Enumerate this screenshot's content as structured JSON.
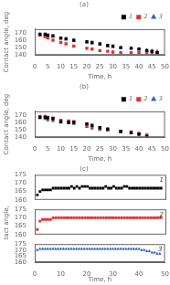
{
  "chart_data": [
    {
      "type": "scatter",
      "title": "(a)",
      "xlabel": "Time, h",
      "ylabel": "Contact angle, deg",
      "xlim": [
        0,
        50
      ],
      "ylim": [
        140,
        175
      ],
      "xticks": [
        0,
        5,
        10,
        15,
        20,
        25,
        30,
        35,
        40,
        45,
        50
      ],
      "yticks": [
        140,
        150,
        160,
        170
      ],
      "grid": false,
      "legend": "upper right",
      "series": [
        {
          "name": "1",
          "color": "#000000",
          "marker": "square",
          "x": [
            2,
            4,
            5,
            7,
            10,
            12,
            15,
            20,
            22,
            25,
            28,
            30,
            33,
            37,
            40,
            43,
            45,
            47
          ],
          "values": [
            168,
            168,
            167,
            166,
            163,
            162,
            160,
            158,
            157,
            155,
            153,
            152,
            150,
            149,
            148,
            146,
            145,
            143
          ]
        },
        {
          "name": "2",
          "color": "#e03030",
          "marker": "square",
          "x": [
            2,
            4,
            5,
            7,
            10,
            12,
            15,
            20,
            22,
            25,
            28,
            30,
            33,
            37,
            40,
            43,
            45,
            47
          ],
          "values": [
            167,
            165,
            163,
            160,
            157,
            155,
            152,
            149,
            148,
            146,
            145,
            144,
            143,
            143,
            143,
            143,
            143,
            143
          ]
        },
        {
          "name": "3",
          "color": "#3060c0",
          "marker": "triangle",
          "x": [
            2,
            4,
            5,
            7,
            10,
            12,
            15,
            20,
            22,
            25,
            28,
            30,
            33,
            37,
            40,
            43,
            45,
            47
          ],
          "values": [
            168,
            167,
            166,
            165,
            162,
            161,
            159,
            157,
            156,
            154,
            152,
            151,
            150,
            149,
            148,
            147,
            146,
            145
          ]
        }
      ]
    },
    {
      "type": "scatter",
      "title": "(b)",
      "xlabel": "Time, h",
      "ylabel": "Contact angle, deg",
      "xlim": [
        0,
        50
      ],
      "ylim": [
        140,
        175
      ],
      "xticks": [
        0,
        5,
        10,
        15,
        20,
        25,
        30,
        35,
        40,
        45,
        50
      ],
      "yticks": [
        140,
        150,
        160,
        170
      ],
      "grid": false,
      "legend": "upper right",
      "series": [
        {
          "name": "1",
          "color": "#000000",
          "marker": "square",
          "x": [
            2,
            4,
            5,
            7,
            10,
            13,
            15,
            20,
            22,
            25,
            28,
            33,
            37,
            40,
            43
          ],
          "values": [
            167,
            167,
            166,
            165,
            161,
            160,
            160,
            158,
            156,
            153,
            151,
            148,
            146,
            144,
            141
          ]
        },
        {
          "name": "2",
          "color": "#e03030",
          "marker": "square",
          "x": [
            2,
            4,
            5,
            7,
            10,
            13,
            15,
            20,
            22,
            25,
            28,
            33,
            37,
            40,
            43
          ],
          "values": [
            168,
            168,
            167,
            166,
            163,
            162,
            161,
            156,
            154,
            152,
            150,
            148,
            147,
            145,
            143
          ]
        },
        {
          "name": "3",
          "color": "#3060c0",
          "marker": "triangle",
          "x": [
            2,
            4,
            5,
            7,
            10,
            13,
            15,
            20,
            22,
            25,
            28,
            33,
            37,
            40,
            43
          ],
          "values": [
            166,
            165,
            163,
            162,
            160,
            159,
            158,
            154,
            152,
            150,
            149,
            147,
            146,
            145,
            143
          ]
        }
      ]
    },
    {
      "type": "scatter",
      "title": "(c)",
      "xlim": [
        0,
        50
      ],
      "ylim": [
        160,
        175
      ],
      "yticks": [
        160,
        165,
        170,
        175
      ],
      "grid": false,
      "tick_labels": "y",
      "annotations": [
        "1"
      ],
      "series": [
        {
          "color": "#000000",
          "marker": "square",
          "x": [
            1,
            2,
            3,
            4,
            5,
            6,
            7,
            8,
            9,
            10,
            11,
            12,
            13,
            14,
            15,
            16,
            17,
            18,
            19,
            20,
            21,
            22,
            23,
            24,
            25,
            26,
            27,
            28,
            29,
            30,
            31,
            32,
            33,
            34,
            35,
            36,
            37,
            38,
            39,
            40,
            41,
            42,
            43,
            44,
            45,
            46,
            47,
            48
          ],
          "values": [
            163,
            165,
            166,
            166,
            166,
            166,
            167,
            167,
            167,
            167,
            167,
            167,
            167,
            168,
            167,
            168,
            167,
            168,
            168,
            168,
            167,
            167,
            167,
            167,
            167,
            167,
            168,
            167,
            167,
            168,
            167,
            167,
            167,
            168,
            168,
            167,
            167,
            167,
            167,
            167,
            167,
            167,
            167,
            167,
            167,
            167,
            167,
            167
          ]
        }
      ]
    },
    {
      "type": "scatter",
      "ylabel": "Contact angle, deg",
      "xlim": [
        0,
        50
      ],
      "ylim": [
        160,
        175
      ],
      "yticks": [
        160,
        165,
        170,
        175
      ],
      "grid": false,
      "tick_labels": "y",
      "annotations": [
        "2"
      ],
      "series": [
        {
          "color": "#e03030",
          "marker": "square",
          "x": [
            1,
            2,
            3,
            4,
            5,
            6,
            7,
            8,
            9,
            10,
            11,
            12,
            13,
            14,
            15,
            16,
            17,
            18,
            19,
            20,
            21,
            22,
            23,
            24,
            25,
            26,
            27,
            28,
            29,
            30,
            31,
            32,
            33,
            34,
            35,
            36,
            37,
            38,
            39,
            40,
            41,
            42,
            43,
            44,
            45,
            46,
            47,
            48
          ],
          "values": [
            163,
            168,
            169,
            169,
            169,
            169,
            170,
            170,
            170,
            170,
            170,
            170,
            170,
            170,
            170,
            170,
            170,
            170,
            170,
            170,
            170,
            170,
            170,
            170,
            170,
            170,
            170,
            170,
            170,
            170,
            170,
            170,
            170,
            170,
            170,
            170,
            170,
            170,
            170,
            170,
            170,
            170,
            170,
            170,
            170,
            170,
            170,
            170
          ]
        }
      ]
    },
    {
      "type": "scatter",
      "xlabel": "Time, h",
      "xlim": [
        0,
        50
      ],
      "xticks": [
        0,
        10,
        20,
        30,
        40,
        50
      ],
      "ylim": [
        160,
        175
      ],
      "yticks": [
        160,
        165,
        170,
        175
      ],
      "grid": false,
      "annotations": [
        "3"
      ],
      "series": [
        {
          "color": "#3060c0",
          "marker": "triangle",
          "x": [
            1,
            2,
            3,
            4,
            5,
            6,
            7,
            8,
            9,
            10,
            11,
            12,
            13,
            14,
            15,
            16,
            17,
            18,
            19,
            20,
            21,
            22,
            23,
            24,
            25,
            26,
            27,
            28,
            29,
            30,
            31,
            32,
            33,
            34,
            35,
            36,
            37,
            38,
            39,
            40,
            41,
            42,
            43,
            44,
            45,
            46,
            47,
            48
          ],
          "values": [
            170,
            171,
            171,
            171,
            171,
            171,
            171,
            171,
            171,
            171,
            171,
            171,
            171,
            171,
            171,
            171,
            171,
            171,
            171,
            171,
            171,
            171,
            171,
            171,
            171,
            171,
            171,
            171,
            171,
            171,
            171,
            171,
            171,
            171,
            171,
            171,
            171,
            171,
            171,
            171,
            170,
            170,
            169,
            169,
            168,
            168,
            167,
            167
          ]
        }
      ]
    }
  ]
}
